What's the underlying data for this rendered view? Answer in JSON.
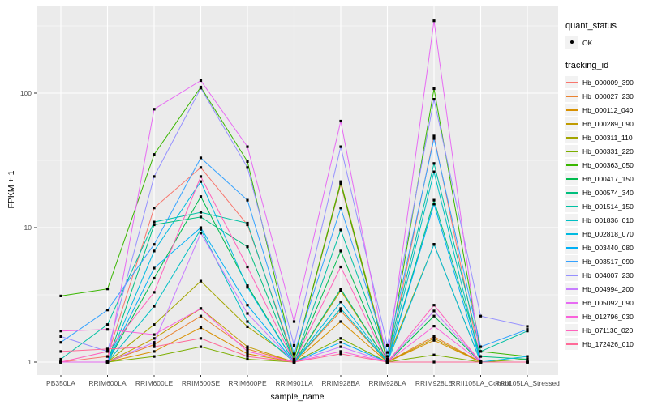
{
  "chart_data": {
    "type": "line",
    "title": "",
    "xlabel": "sample_name",
    "ylabel": "FPKM + 1",
    "y_scale": "log10",
    "y_ticks": [
      "1",
      "10",
      "100"
    ],
    "y_tick_values": [
      1,
      10,
      100
    ],
    "ylim": [
      0.82,
      440
    ],
    "grid": "on",
    "panel_bg": "#EBEBEB",
    "gridline_color": "#FFFFFF",
    "tick_label_color": "#4D4D4D",
    "marker": "black point (quant_status OK)",
    "legend_position": "right",
    "categories": [
      "PB350LA",
      "RRIM600LA",
      "RRIM600LE",
      "RRIM600SE",
      "RRIM600PE",
      "RRIM901LA",
      "RRIM928BA",
      "RRIM928LA",
      "RRIM928LE",
      "RRII105LA_Control",
      "RRII105LA_Stressed"
    ],
    "series": [
      {
        "name": "Hb_000009_390",
        "color": "#F8766D",
        "values": [
          1.0,
          1.1,
          14,
          28,
          10.5,
          1.05,
          21,
          1.0,
          48,
          1.0,
          1.0
        ]
      },
      {
        "name": "Hb_000027_230",
        "color": "#EA8331",
        "values": [
          1.0,
          1.0,
          1.35,
          2.2,
          1.25,
          1.0,
          2.4,
          1.0,
          1.55,
          1.0,
          1.0
        ]
      },
      {
        "name": "Hb_000112_040",
        "color": "#D89000",
        "values": [
          1.0,
          1.0,
          1.2,
          1.8,
          1.15,
          1.0,
          2.0,
          1.0,
          1.45,
          1.0,
          1.0
        ]
      },
      {
        "name": "Hb_000289_090",
        "color": "#C09B00",
        "values": [
          1.0,
          1.0,
          1.5,
          2.5,
          1.3,
          1.0,
          3.4,
          1.0,
          1.5,
          1.0,
          1.0
        ]
      },
      {
        "name": "Hb_000311_110",
        "color": "#A3A500",
        "values": [
          1.0,
          1.0,
          1.9,
          4.0,
          1.83,
          1.05,
          22,
          1.05,
          7.5,
          1.0,
          1.0
        ]
      },
      {
        "name": "Hb_000331_220",
        "color": "#7CAE00",
        "values": [
          1.0,
          1.0,
          1.1,
          1.3,
          1.05,
          1.0,
          1.5,
          1.0,
          1.13,
          1.0,
          1.05
        ]
      },
      {
        "name": "Hb_000363_050",
        "color": "#39B600",
        "values": [
          3.1,
          3.5,
          35,
          111,
          31,
          1.05,
          21.5,
          1.0,
          108,
          1.2,
          1.1
        ]
      },
      {
        "name": "Hb_000417_150",
        "color": "#00BB4E",
        "values": [
          1.0,
          1.0,
          4.2,
          17,
          3.7,
          1.0,
          6.7,
          1.0,
          2.2,
          1.0,
          1.0
        ]
      },
      {
        "name": "Hb_000574_340",
        "color": "#00BF7D",
        "values": [
          1.0,
          1.0,
          10.5,
          12,
          7.2,
          1.0,
          3.5,
          1.0,
          16,
          1.1,
          1.05
        ]
      },
      {
        "name": "Hb_001514_150",
        "color": "#00C1A3",
        "values": [
          1.05,
          1.9,
          11,
          13,
          10.8,
          1.0,
          9.6,
          1.1,
          30,
          1.2,
          1.7
        ]
      },
      {
        "name": "Hb_001836_010",
        "color": "#00BFC4",
        "values": [
          1.0,
          1.0,
          2.6,
          9.7,
          2.0,
          1.0,
          2.5,
          1.0,
          26,
          1.0,
          1.0
        ]
      },
      {
        "name": "Hb_002818_070",
        "color": "#00BAE0",
        "values": [
          1.0,
          1.0,
          6.7,
          22,
          3.6,
          1.0,
          2.8,
          1.0,
          7.5,
          1.0,
          1.1
        ]
      },
      {
        "name": "Hb_003440_080",
        "color": "#00B0F6",
        "values": [
          1.0,
          1.0,
          5.0,
          10,
          2.65,
          1.0,
          1.4,
          1.0,
          15,
          1.0,
          1.0
        ]
      },
      {
        "name": "Hb_003517_090",
        "color": "#35A2FF",
        "values": [
          1.4,
          2.44,
          7.5,
          33,
          16,
          1.15,
          14,
          1.18,
          46,
          1.3,
          1.75
        ]
      },
      {
        "name": "Hb_004007_230",
        "color": "#9590FF",
        "values": [
          1.55,
          1.2,
          24,
          109,
          28,
          1.33,
          40,
          1.33,
          90,
          2.2,
          1.84
        ]
      },
      {
        "name": "Hb_004994_200",
        "color": "#C77CFF",
        "values": [
          1.0,
          1.0,
          1.4,
          9.1,
          2.3,
          1.0,
          1.3,
          1.0,
          2.4,
          1.0,
          1.0
        ]
      },
      {
        "name": "Hb_005092_090",
        "color": "#E76BF3",
        "values": [
          1.0,
          1.0,
          76,
          124,
          40,
          2.0,
          62,
          1.0,
          345,
          1.0,
          1.0
        ]
      },
      {
        "name": "Hb_012796_030",
        "color": "#FA62DB",
        "values": [
          1.7,
          1.75,
          1.6,
          2.5,
          1.2,
          1.0,
          1.2,
          1.0,
          1.85,
          1.0,
          1.0
        ]
      },
      {
        "name": "Hb_071130_020",
        "color": "#FF62BC",
        "values": [
          1.0,
          1.2,
          3.3,
          24,
          5.1,
          1.0,
          5.1,
          1.0,
          2.65,
          1.0,
          1.0
        ]
      },
      {
        "name": "Hb_172426_010",
        "color": "#FF6A98",
        "values": [
          1.2,
          1.25,
          1.3,
          1.5,
          1.1,
          1.0,
          1.15,
          1.0,
          1.0,
          1.0,
          1.0
        ]
      }
    ]
  },
  "legend": {
    "quant_status_title": "quant_status",
    "quant_status_items": [
      "OK"
    ],
    "tracking_id_title": "tracking_id"
  },
  "axes": {
    "x_title": "sample_name",
    "y_title": "FPKM + 1"
  }
}
